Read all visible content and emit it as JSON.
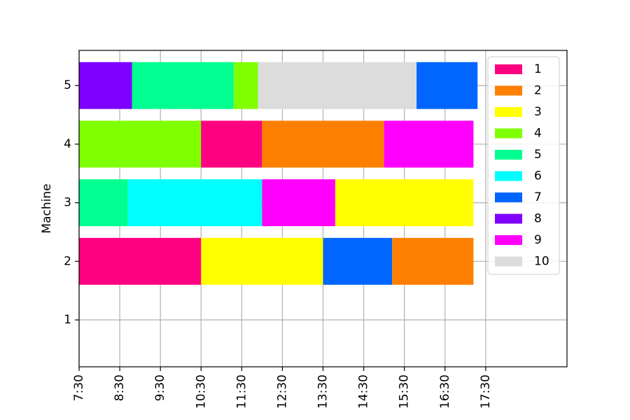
{
  "chart_data": {
    "type": "gantt",
    "ylabel": "Machine",
    "xlabel": "",
    "machines": [
      1,
      2,
      3,
      4,
      5
    ],
    "x_ticks": [
      "7:30",
      "8:30",
      "9:30",
      "10:30",
      "11:30",
      "12:30",
      "13:30",
      "14:30",
      "15:30",
      "16:30",
      "17:30"
    ],
    "x_range": [
      "7:30",
      "19:30"
    ],
    "y_range": [
      0.2,
      5.6
    ],
    "grid": true,
    "legend_position": "top-right",
    "jobs": [
      {
        "label": "1",
        "color": "#ff0080"
      },
      {
        "label": "2",
        "color": "#ff8000"
      },
      {
        "label": "3",
        "color": "#ffff00"
      },
      {
        "label": "4",
        "color": "#80ff00"
      },
      {
        "label": "5",
        "color": "#00ff90"
      },
      {
        "label": "6",
        "color": "#00ffff"
      },
      {
        "label": "7",
        "color": "#0066ff"
      },
      {
        "label": "8",
        "color": "#7f00ff"
      },
      {
        "label": "9",
        "color": "#ff00ff"
      },
      {
        "label": "10",
        "color": "#dcdcdc"
      }
    ],
    "tasks": [
      {
        "machine": 2,
        "job": "1",
        "start": "7:30",
        "end": "10:30"
      },
      {
        "machine": 2,
        "job": "3",
        "start": "10:30",
        "end": "13:30"
      },
      {
        "machine": 2,
        "job": "7",
        "start": "13:30",
        "end": "15:12"
      },
      {
        "machine": 2,
        "job": "2",
        "start": "15:12",
        "end": "17:12"
      },
      {
        "machine": 3,
        "job": "5",
        "start": "7:30",
        "end": "8:42"
      },
      {
        "machine": 3,
        "job": "6",
        "start": "8:42",
        "end": "12:00"
      },
      {
        "machine": 3,
        "job": "9",
        "start": "12:00",
        "end": "13:48"
      },
      {
        "machine": 3,
        "job": "3",
        "start": "13:48",
        "end": "17:12"
      },
      {
        "machine": 4,
        "job": "4",
        "start": "7:30",
        "end": "10:30"
      },
      {
        "machine": 4,
        "job": "1",
        "start": "10:30",
        "end": "12:00"
      },
      {
        "machine": 4,
        "job": "2",
        "start": "12:00",
        "end": "15:00"
      },
      {
        "machine": 4,
        "job": "9",
        "start": "15:00",
        "end": "17:12"
      },
      {
        "machine": 5,
        "job": "8",
        "start": "7:30",
        "end": "8:48"
      },
      {
        "machine": 5,
        "job": "5",
        "start": "8:48",
        "end": "11:18"
      },
      {
        "machine": 5,
        "job": "4",
        "start": "11:18",
        "end": "11:54"
      },
      {
        "machine": 5,
        "job": "10",
        "start": "11:54",
        "end": "15:48"
      },
      {
        "machine": 5,
        "job": "7",
        "start": "15:48",
        "end": "17:18"
      }
    ]
  }
}
